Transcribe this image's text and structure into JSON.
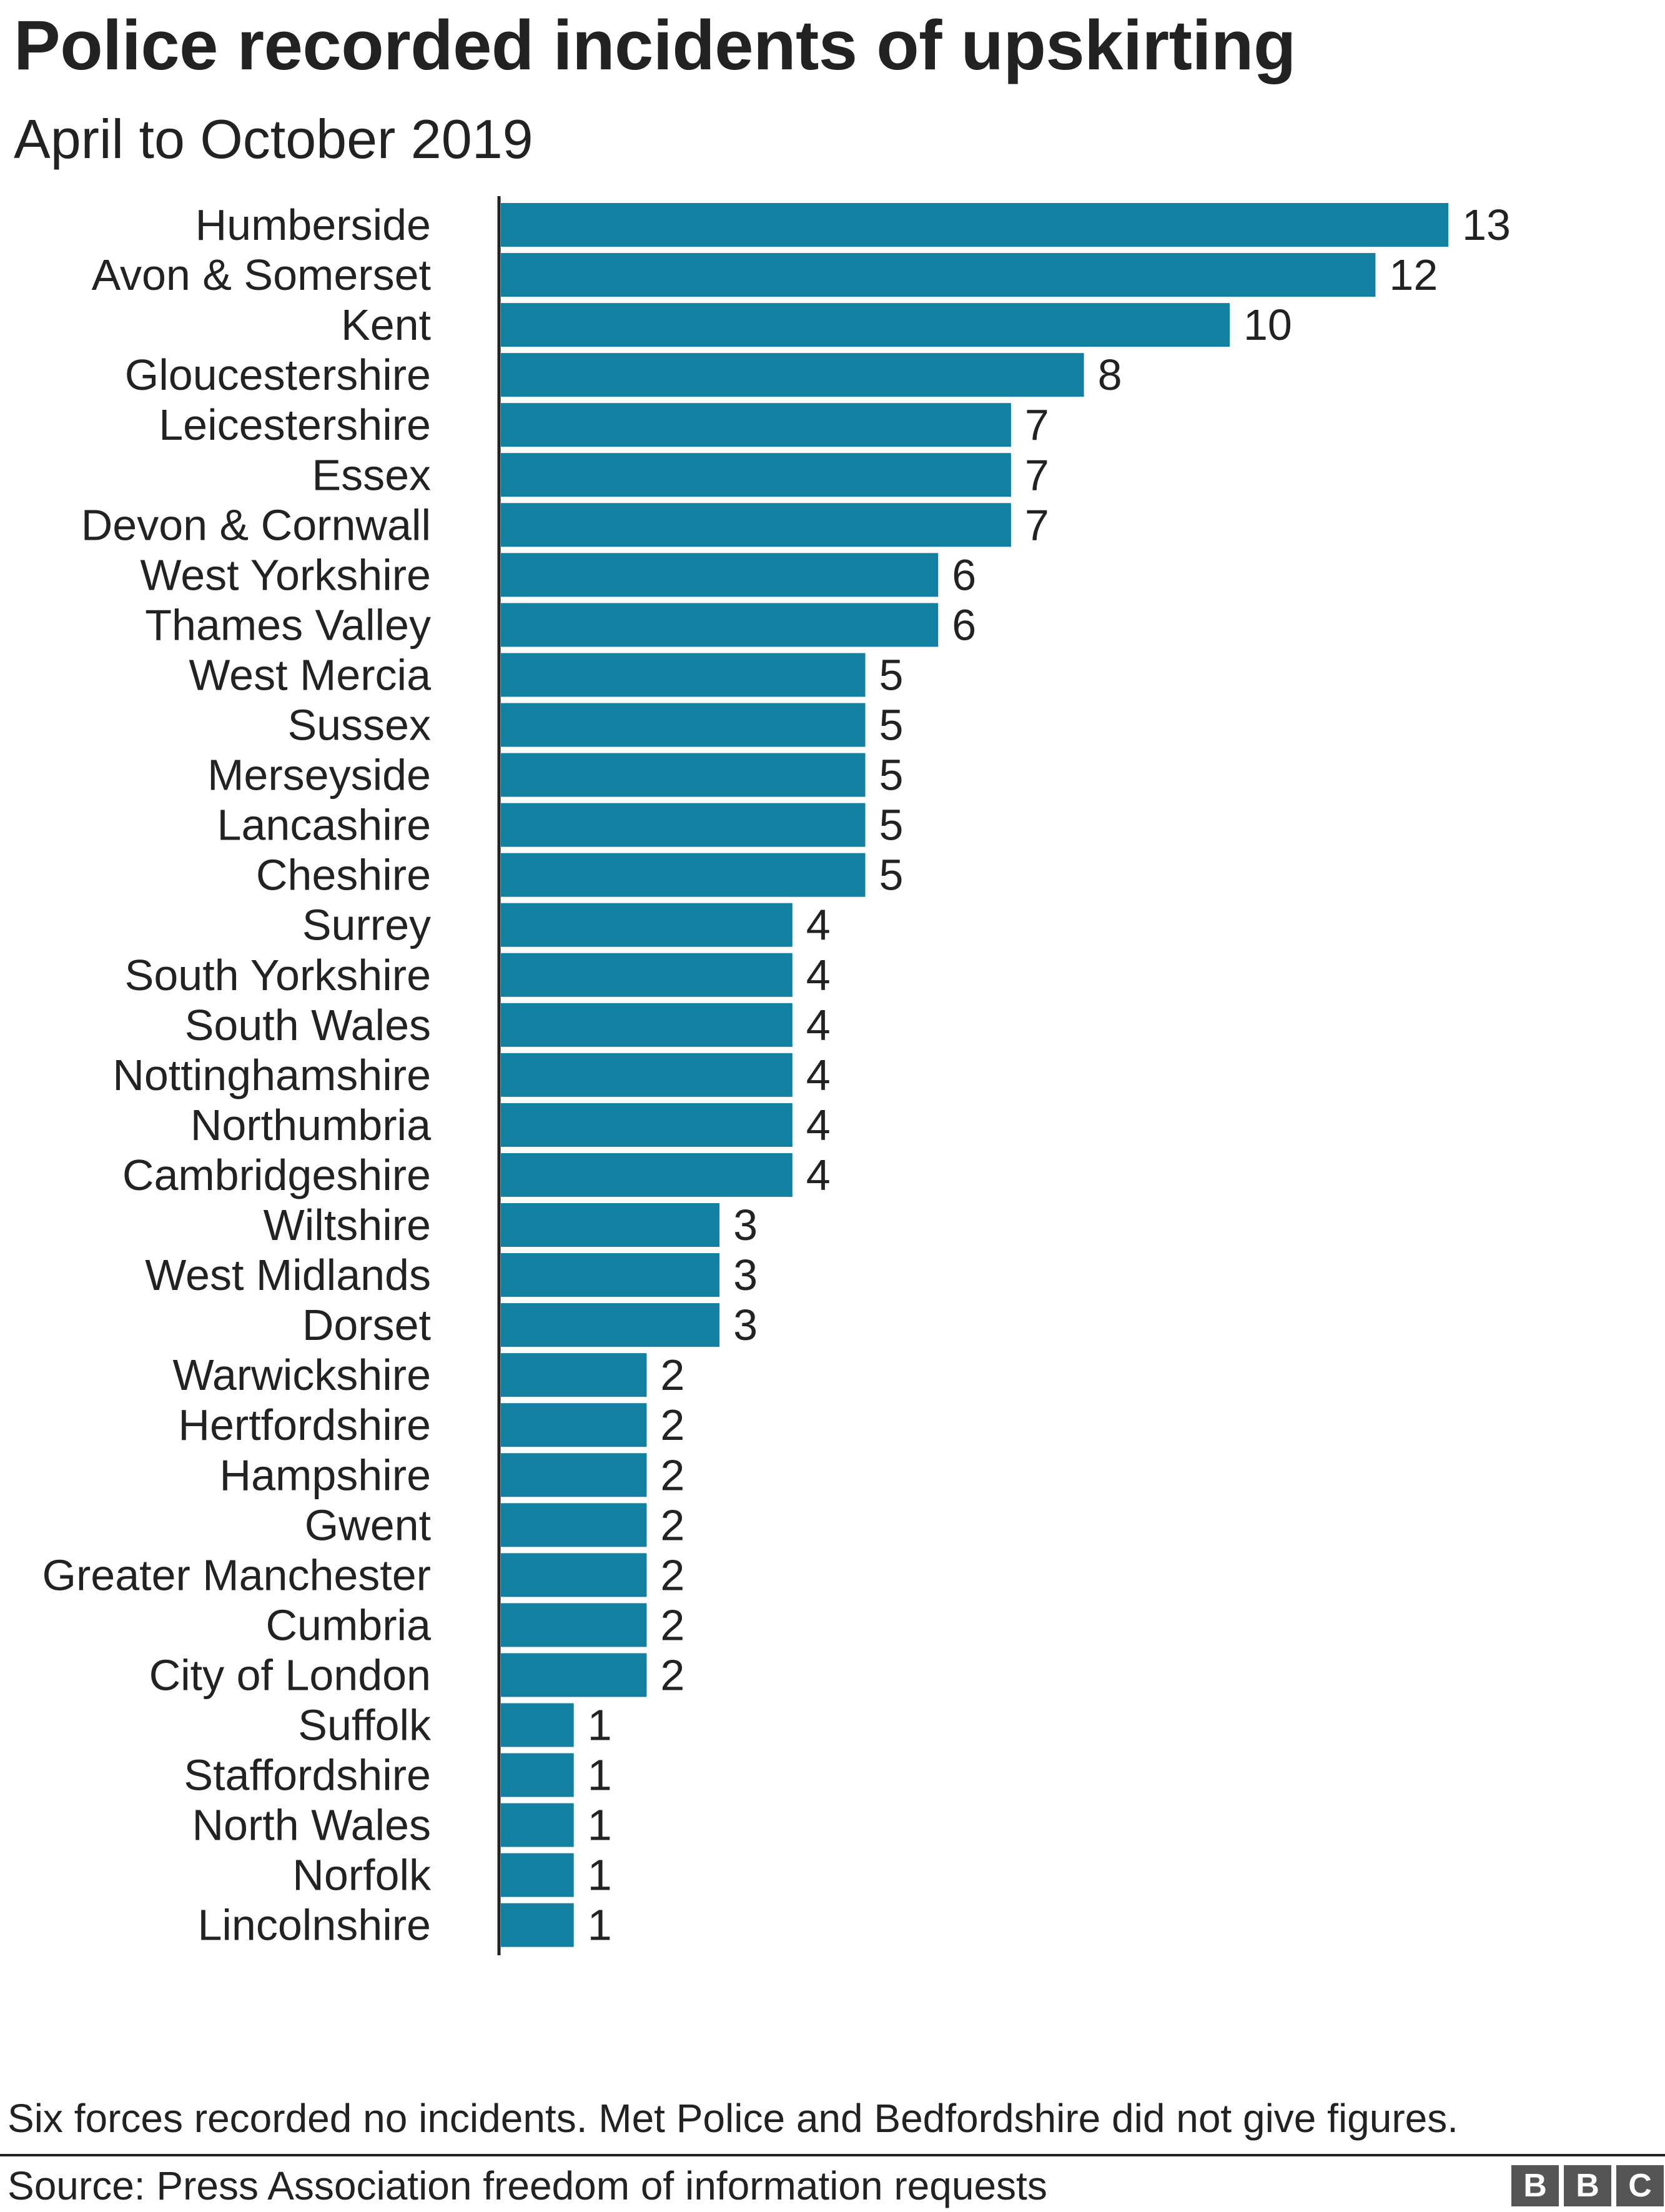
{
  "chart_data": {
    "type": "bar",
    "orientation": "horizontal",
    "title": "Police recorded incidents of upskirting",
    "subtitle": "April to October 2019",
    "categories": [
      "Humberside",
      "Avon & Somerset",
      "Kent",
      "Gloucestershire",
      "Leicestershire",
      "Essex",
      "Devon & Cornwall",
      "West Yorkshire",
      "Thames Valley",
      "West Mercia",
      "Sussex",
      "Merseyside",
      "Lancashire",
      "Cheshire",
      "Surrey",
      "South Yorkshire",
      "South Wales",
      "Nottinghamshire",
      "Northumbria",
      "Cambridgeshire",
      "Wiltshire",
      "West Midlands",
      "Dorset",
      "Warwickshire",
      "Hertfordshire",
      "Hampshire",
      "Gwent",
      "Greater Manchester",
      "Cumbria",
      "City of London",
      "Suffolk",
      "Staffordshire",
      "North Wales",
      "Norfolk",
      "Lincolnshire"
    ],
    "values": [
      13,
      12,
      10,
      8,
      7,
      7,
      7,
      6,
      6,
      5,
      5,
      5,
      5,
      5,
      4,
      4,
      4,
      4,
      4,
      4,
      3,
      3,
      3,
      2,
      2,
      2,
      2,
      2,
      2,
      2,
      1,
      1,
      1,
      1,
      1
    ],
    "xlabel": "",
    "ylabel": "",
    "xlim": [
      0,
      13
    ],
    "grid": false,
    "legend": "none",
    "bar_color": "#1380A1"
  },
  "note": "Six forces recorded no incidents. Met Police and Bedfordshire did not give figures.",
  "source": "Source: Press Association freedom of information requests",
  "logo": {
    "letters": [
      "B",
      "B",
      "C"
    ],
    "color": "#555555"
  }
}
